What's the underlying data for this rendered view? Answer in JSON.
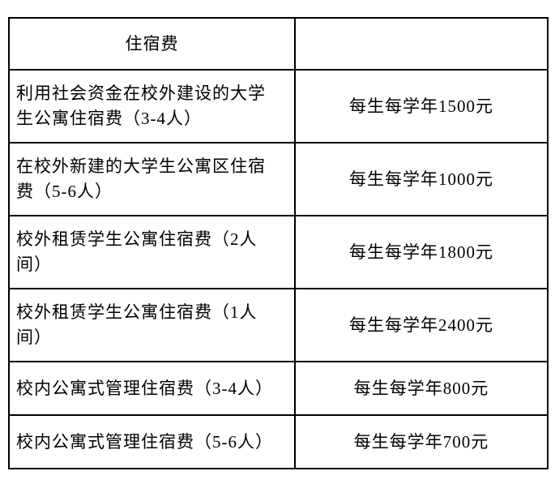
{
  "table": {
    "title": "住宿费",
    "header": {
      "col1": "住宿费",
      "col2": ""
    },
    "rows": [
      {
        "item": "利用社会资金在校外建设的大学生公寓住宿费（3-4人）",
        "fee": "每生每学年1500元"
      },
      {
        "item": "在校外新建的大学生公寓区住宿费（5-6人）",
        "fee": "每生每学年1000元"
      },
      {
        "item": "校外租赁学生公寓住宿费（2人间）",
        "fee": "每生每学年1800元"
      },
      {
        "item": "校外租赁学生公寓住宿费（1人间）",
        "fee": "每生每学年2400元"
      },
      {
        "item": "校内公寓式管理住宿费（3-4人）",
        "fee": "每生每学年800元"
      },
      {
        "item": "校内公寓式管理住宿费（5-6人）",
        "fee": "每生每学年700元"
      }
    ],
    "colors": {
      "border": "#000000",
      "text": "#000000",
      "background": "#ffffff"
    }
  }
}
